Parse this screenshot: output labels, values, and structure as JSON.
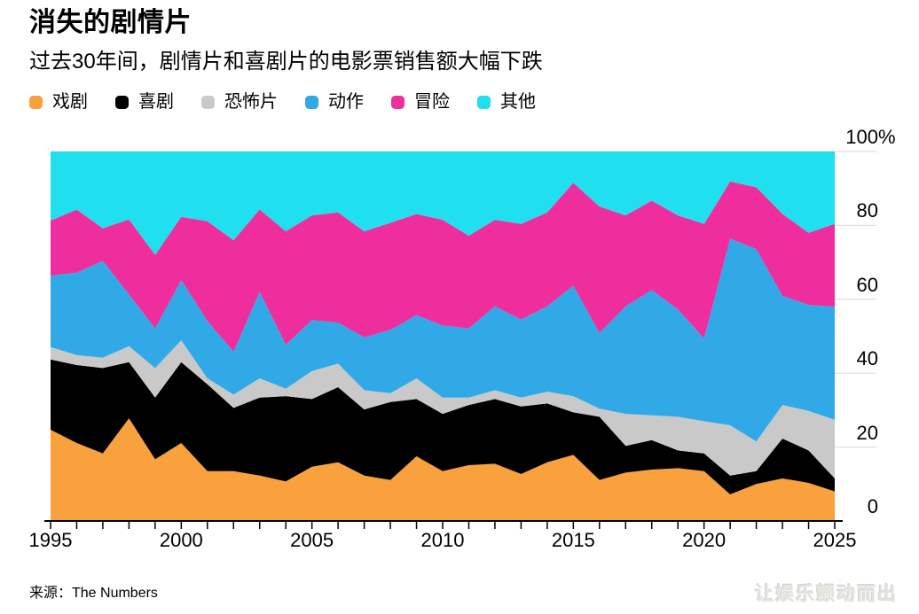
{
  "header": {
    "title": "消失的剧情片",
    "subtitle": "过去30年间，剧情片和喜剧片的电影票销售额大幅下跌"
  },
  "footer": {
    "source": "来源：The Numbers",
    "watermark": "让娱乐颤动而出"
  },
  "colors": {
    "drama": "#F9A13C",
    "comedy": "#000000",
    "horror": "#C9C9C9",
    "action": "#30A9E6",
    "adventure": "#EE2E9C",
    "other": "#20DFEE",
    "gridline": "#D8D8D8",
    "axis": "#000000"
  },
  "chart_data": {
    "type": "area",
    "stacked": true,
    "units": "percent",
    "title": "消失的剧情片",
    "subtitle": "过去30年间，剧情片和喜剧片的电影票销售额大幅下跌",
    "xlabel": "",
    "ylabel": "%",
    "ylim": [
      0,
      100
    ],
    "grid": "horizontal",
    "legend_position": "top",
    "x": [
      1995,
      1996,
      1997,
      1998,
      1999,
      2000,
      2001,
      2002,
      2003,
      2004,
      2005,
      2006,
      2007,
      2008,
      2009,
      2010,
      2011,
      2012,
      2013,
      2014,
      2015,
      2016,
      2017,
      2018,
      2019,
      2020,
      2021,
      2022,
      2023,
      2024,
      2025
    ],
    "x_ticks_labeled": [
      1995,
      2000,
      2005,
      2010,
      2015,
      2020,
      2025
    ],
    "y_ticks": [
      {
        "value": 100,
        "label": "100",
        "suffix": "%"
      },
      {
        "value": 80,
        "label": "80",
        "suffix": ""
      },
      {
        "value": 60,
        "label": "60",
        "suffix": ""
      },
      {
        "value": 40,
        "label": "40",
        "suffix": ""
      },
      {
        "value": 20,
        "label": "20",
        "suffix": ""
      },
      {
        "value": 0,
        "label": "0",
        "suffix": ""
      }
    ],
    "series": [
      {
        "name": "戏剧",
        "name_en": "drama",
        "color": "#F9A13C",
        "values": [
          24.7,
          21.1,
          18.3,
          27.8,
          16.7,
          21.1,
          13.5,
          13.5,
          12.3,
          10.7,
          14.7,
          15.9,
          12.3,
          11.1,
          17.5,
          13.5,
          15.1,
          15.5,
          12.7,
          15.9,
          17.9,
          11.1,
          13.1,
          13.9,
          14.3,
          13.5,
          7.2,
          10.0,
          11.5,
          10.3,
          8.0
        ]
      },
      {
        "name": "喜剧",
        "name_en": "comedy",
        "color": "#000000",
        "values": [
          19.0,
          21.1,
          23.1,
          15.2,
          16.7,
          21.9,
          23.5,
          17.1,
          21.1,
          23.1,
          18.3,
          20.3,
          17.9,
          21.1,
          15.5,
          15.5,
          16.3,
          17.5,
          18.3,
          15.9,
          11.5,
          17.1,
          7.2,
          8.0,
          4.8,
          4.8,
          5.1,
          3.5,
          10.8,
          8.8,
          3.5
        ]
      },
      {
        "name": "恐怖片",
        "name_en": "horror",
        "color": "#C9C9C9",
        "values": [
          3.4,
          2.7,
          2.8,
          4.3,
          8.0,
          5.9,
          1.6,
          3.6,
          5.2,
          2.0,
          7.6,
          6.4,
          5.2,
          2.4,
          5.6,
          4.4,
          2.0,
          2.4,
          2.4,
          3.2,
          4.4,
          2.2,
          8.7,
          6.7,
          9.1,
          8.7,
          13.6,
          8.0,
          9.1,
          10.7,
          15.9
        ]
      },
      {
        "name": "动作",
        "name_en": "action",
        "color": "#30A9E6",
        "values": [
          19.3,
          22.3,
          26.2,
          14.0,
          10.7,
          16.3,
          15.5,
          11.6,
          23.4,
          11.9,
          13.8,
          11.1,
          14.3,
          17.1,
          17.1,
          19.5,
          18.7,
          22.7,
          21.1,
          23.1,
          29.9,
          20.5,
          29.1,
          33.9,
          29.1,
          22.4,
          50.5,
          52.1,
          29.5,
          28.7,
          30.6
        ]
      },
      {
        "name": "冒险",
        "name_en": "adventure",
        "color": "#EE2E9C",
        "values": [
          14.9,
          17.1,
          8.8,
          20.3,
          19.9,
          17.1,
          27.0,
          30.2,
          22.3,
          30.7,
          28.3,
          29.8,
          28.7,
          29.0,
          27.4,
          28.6,
          25.1,
          23.4,
          25.9,
          25.4,
          27.8,
          34.2,
          24.6,
          24.2,
          25.4,
          31.0,
          15.5,
          16.7,
          22.2,
          19.5,
          22.4
        ]
      },
      {
        "name": "其他",
        "name_en": "other",
        "color": "#20DFEE",
        "values": [
          18.7,
          15.7,
          20.8,
          18.4,
          28.0,
          17.7,
          18.9,
          24.0,
          15.7,
          21.6,
          17.3,
          16.5,
          21.6,
          19.3,
          16.9,
          18.5,
          22.8,
          18.5,
          19.6,
          16.5,
          8.5,
          14.9,
          17.3,
          13.3,
          17.3,
          19.6,
          8.1,
          9.7,
          16.9,
          22.0,
          19.6
        ]
      }
    ]
  }
}
